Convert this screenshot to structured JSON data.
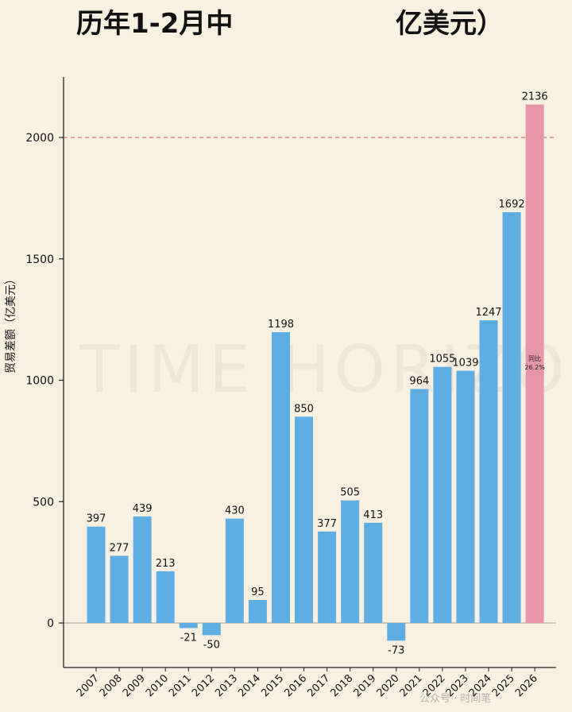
{
  "chart_data": {
    "type": "bar",
    "title_left": "历年1-2月中",
    "title_right": "亿美元）",
    "ylabel": "贸易差额（亿美元）",
    "categories": [
      "2007",
      "2008",
      "2009",
      "2010",
      "2011",
      "2012",
      "2013",
      "2014",
      "2015",
      "2016",
      "2017",
      "2018",
      "2019",
      "2020",
      "2021",
      "2022",
      "2023",
      "2024",
      "2025",
      "2026"
    ],
    "values": [
      397,
      277,
      439,
      213,
      -21,
      -50,
      430,
      95,
      1198,
      850,
      377,
      505,
      413,
      -73,
      964,
      1055,
      1039,
      1247,
      1692,
      2136
    ],
    "value_labels": [
      "397",
      "277",
      "439",
      "213",
      "-21",
      "-50",
      "430",
      "95",
      "1198",
      "850",
      "377",
      "505",
      "413",
      "-73",
      "964",
      "1055",
      "1039",
      "1247",
      "1692",
      "2136"
    ],
    "ylim": [
      -180,
      2250
    ],
    "yticks": [
      0,
      500,
      1000,
      1500,
      2000
    ],
    "reference_line": 2000,
    "highlight_index": 19,
    "annotation": {
      "line1": "同比",
      "line2": "26.2%"
    },
    "colors": {
      "bar": "#5faee3",
      "highlight": "#e597a8",
      "refline": "#d07870",
      "axis": "#222222",
      "zeroline": "#999999"
    },
    "watermark": "TIME HORIZON",
    "footer_watermark": "公众号 · 时间笔"
  }
}
